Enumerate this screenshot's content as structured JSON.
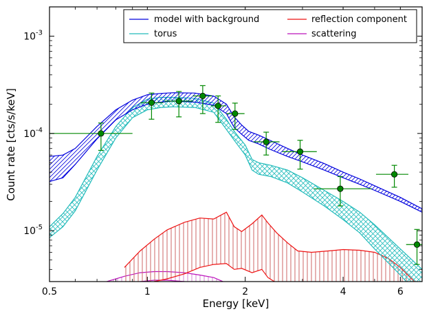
{
  "chart_data": {
    "type": "line",
    "xlabel": "Energy [keV]",
    "ylabel": "Count rate [cts/s/keV]",
    "x_scale": "log",
    "y_scale": "log",
    "xlim": [
      0.5,
      7.0
    ],
    "ylim": [
      3e-06,
      0.002
    ],
    "grid": false,
    "legend_position": "top-right",
    "x_ticks": [
      {
        "value": 0.5,
        "label": "0.5"
      },
      {
        "value": 1,
        "label": "1"
      },
      {
        "value": 2,
        "label": "2"
      },
      {
        "value": 4,
        "label": "4"
      },
      {
        "value": 6,
        "label": "6"
      }
    ],
    "y_ticks": [
      {
        "value": 1e-05,
        "base": "10",
        "exp": "-5"
      },
      {
        "value": 0.0001,
        "base": "10",
        "exp": "-4"
      },
      {
        "value": 0.001,
        "base": "10",
        "exp": "-3"
      }
    ],
    "legend": [
      {
        "label": "model with background",
        "color": "#0000dd"
      },
      {
        "label": "torus",
        "color": "#22bbbb"
      },
      {
        "label": "reflection component",
        "color": "#ee1111"
      },
      {
        "label": "scattering",
        "color": "#bb11bb"
      }
    ],
    "series": [
      {
        "name": "model with background",
        "color": "#0000dd",
        "x": [
          0.5,
          0.55,
          0.6,
          0.7,
          0.8,
          0.9,
          1.0,
          1.1,
          1.2,
          1.4,
          1.6,
          1.75,
          1.85,
          1.95,
          2.05,
          2.2,
          2.4,
          2.7,
          3.0,
          3.5,
          4.0,
          4.5,
          5.0,
          6.0,
          7.0
        ],
        "y_low": [
          3.2e-05,
          3.5e-05,
          4.8e-05,
          8.8e-05,
          0.000138,
          0.000175,
          0.0002,
          0.00021,
          0.000215,
          0.00021,
          0.000195,
          0.00016,
          0.000115,
          9.8e-05,
          8.5e-05,
          7.8e-05,
          6.8e-05,
          5.8e-05,
          5.1e-05,
          4.2e-05,
          3.5e-05,
          3e-05,
          2.6e-05,
          2e-05,
          1.55e-05
        ],
        "y_high": [
          5.8e-05,
          6e-05,
          7e-05,
          0.000118,
          0.000175,
          0.00022,
          0.00025,
          0.000258,
          0.000262,
          0.00026,
          0.000242,
          0.0002,
          0.000148,
          0.000122,
          0.000105,
          9.6e-05,
          8.4e-05,
          7e-05,
          6e-05,
          4.9e-05,
          4e-05,
          3.4e-05,
          2.9e-05,
          2.2e-05,
          1.68e-05
        ]
      },
      {
        "name": "torus",
        "color": "#22bbbb",
        "x": [
          0.5,
          0.55,
          0.6,
          0.7,
          0.8,
          0.9,
          1.0,
          1.1,
          1.2,
          1.4,
          1.6,
          1.75,
          1.85,
          2.0,
          2.1,
          2.2,
          2.4,
          2.7,
          3.0,
          3.5,
          4.0,
          4.5,
          5.0,
          6.0,
          7.0
        ],
        "y_low": [
          8.5e-06,
          1.1e-05,
          1.6e-05,
          4.2e-05,
          9e-05,
          0.000145,
          0.000175,
          0.000185,
          0.000188,
          0.000185,
          0.000165,
          0.00011,
          8.5e-05,
          6e-05,
          4.2e-05,
          3.8e-05,
          3.6e-05,
          3.1e-05,
          2.5e-05,
          1.8e-05,
          1.3e-05,
          9.5e-06,
          6.5e-06,
          3.5e-06,
          2e-06
        ],
        "y_high": [
          1.1e-05,
          1.5e-05,
          2.2e-05,
          5.8e-05,
          0.000118,
          0.000185,
          0.000225,
          0.000235,
          0.000235,
          0.00023,
          0.000205,
          0.00014,
          0.000105,
          7.6e-05,
          5.4e-05,
          5e-05,
          4.7e-05,
          4.2e-05,
          3.5e-05,
          2.6e-05,
          2e-05,
          1.55e-05,
          1.15e-05,
          6.5e-06,
          4e-06
        ]
      },
      {
        "name": "reflection component",
        "color": "#ee1111",
        "x": [
          0.85,
          0.95,
          1.05,
          1.15,
          1.3,
          1.45,
          1.6,
          1.75,
          1.85,
          1.95,
          2.1,
          2.25,
          2.35,
          2.5,
          2.7,
          2.9,
          3.2,
          3.6,
          4.0,
          4.5,
          5.0,
          5.5,
          6.0,
          7.0
        ],
        "y_low": [
          2.6e-06,
          2.8e-06,
          3e-06,
          3.2e-06,
          3.6e-06,
          4.2e-06,
          4.5e-06,
          4.6e-06,
          4e-06,
          4.1e-06,
          3.7e-06,
          4e-06,
          3.3e-06,
          2.9e-06,
          2.6e-06,
          2.4e-06,
          2.2e-06,
          2e-06,
          1.9e-06,
          1.8e-06,
          1.7e-06,
          1.6e-06,
          1.5e-06,
          1.4e-06
        ],
        "y_high": [
          4.2e-06,
          6.2e-06,
          8.2e-06,
          1.02e-05,
          1.22e-05,
          1.35e-05,
          1.32e-05,
          1.55e-05,
          1.1e-05,
          9.8e-06,
          1.18e-05,
          1.45e-05,
          1.2e-05,
          9.5e-06,
          7.5e-06,
          6.2e-06,
          6e-06,
          6.2e-06,
          6.4e-06,
          6.3e-06,
          6e-06,
          5.2e-06,
          4.2e-06,
          2.5e-06
        ]
      },
      {
        "name": "scattering",
        "color": "#bb11bb",
        "x": [
          0.75,
          0.85,
          0.95,
          1.05,
          1.15,
          1.3,
          1.45,
          1.6,
          1.75
        ],
        "y_low": [
          2.4e-06,
          2.8e-06,
          3e-06,
          3.1e-06,
          3.1e-06,
          3e-06,
          2.9e-06,
          2.7e-06,
          2.4e-06
        ],
        "y_high": [
          3e-06,
          3.4e-06,
          3.7e-06,
          3.8e-06,
          3.8e-06,
          3.7e-06,
          3.5e-06,
          3.3e-06,
          2.9e-06
        ]
      }
    ],
    "data_points": {
      "color": "#008800",
      "points": [
        {
          "x": 0.72,
          "y": 0.0001,
          "xerr": [
            0.5,
            0.9
          ],
          "yerr": [
            6.7e-05,
            0.000128
          ]
        },
        {
          "x": 1.03,
          "y": 0.000207,
          "xerr": [
            0.95,
            1.12
          ],
          "yerr": [
            0.00014,
            0.00026
          ]
        },
        {
          "x": 1.25,
          "y": 0.000215,
          "xerr": [
            1.13,
            1.38
          ],
          "yerr": [
            0.000148,
            0.00027
          ]
        },
        {
          "x": 1.48,
          "y": 0.000243,
          "xerr": [
            1.38,
            1.58
          ],
          "yerr": [
            0.00016,
            0.00031
          ]
        },
        {
          "x": 1.65,
          "y": 0.000192,
          "xerr": [
            1.57,
            1.75
          ],
          "yerr": [
            0.00013,
            0.000243
          ]
        },
        {
          "x": 1.86,
          "y": 0.00016,
          "xerr": [
            1.75,
            1.99
          ],
          "yerr": [
            0.00011,
            0.000205
          ]
        },
        {
          "x": 2.32,
          "y": 8.2e-05,
          "xerr": [
            2.12,
            2.55
          ],
          "yerr": [
            6e-05,
            0.000103
          ]
        },
        {
          "x": 2.95,
          "y": 6.5e-05,
          "xerr": [
            2.6,
            3.32
          ],
          "yerr": [
            4.3e-05,
            8.5e-05
          ]
        },
        {
          "x": 3.92,
          "y": 2.7e-05,
          "xerr": [
            3.25,
            4.9
          ],
          "yerr": [
            1.8e-05,
            3.6e-05
          ]
        },
        {
          "x": 5.75,
          "y": 3.8e-05,
          "xerr": [
            5.05,
            6.35
          ],
          "yerr": [
            2.8e-05,
            4.7e-05
          ]
        },
        {
          "x": 6.75,
          "y": 7.2e-06,
          "xerr": [
            6.25,
            7.0
          ],
          "yerr": [
            4.5e-06,
            1.03e-05
          ]
        }
      ]
    }
  }
}
